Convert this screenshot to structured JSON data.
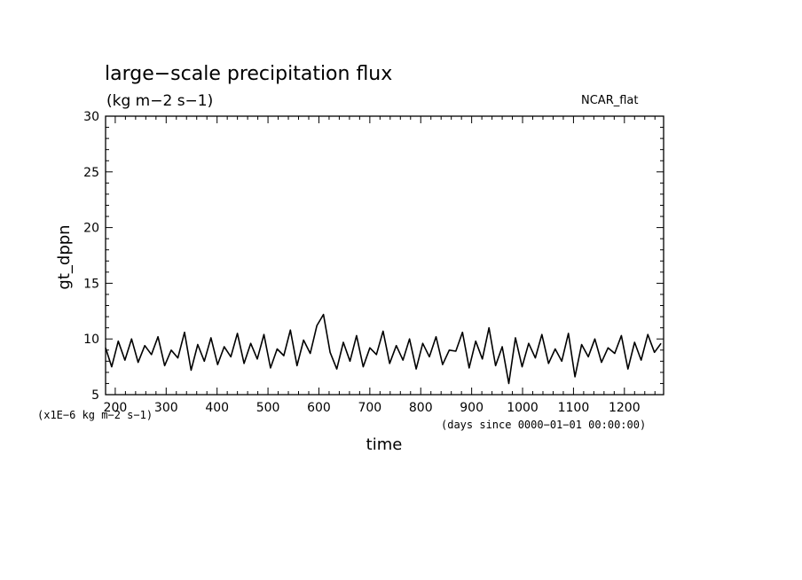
{
  "chart_data": {
    "type": "line",
    "title": "large−scale precipitation flux",
    "units": "(kg m−2 s−1)",
    "tag": "NCAR_flat",
    "ylabel": "gt_dppn",
    "xlabel": "time",
    "y_scale_note": "(x1E−6 kg m−2 s−1)",
    "x_unit_note": "(days since 0000−01−01 00:00:00)",
    "xlim": [
      181,
      1277
    ],
    "ylim": [
      5,
      30
    ],
    "x_ticks": [
      200,
      300,
      400,
      500,
      600,
      700,
      800,
      900,
      1000,
      1100,
      1200
    ],
    "y_ticks": [
      5,
      10,
      15,
      20,
      25,
      30
    ],
    "series": [
      {
        "x": [
          181,
          193,
          206,
          219,
          232,
          245,
          258,
          271,
          284,
          297,
          310,
          323,
          336,
          349,
          362,
          375,
          388,
          401,
          414,
          427,
          440,
          453,
          466,
          479,
          492,
          505,
          518,
          531,
          544,
          557,
          570,
          583,
          596,
          609,
          622,
          635,
          648,
          661,
          674,
          687,
          700,
          713,
          726,
          739,
          752,
          765,
          778,
          791,
          804,
          817,
          830,
          843,
          856,
          869,
          882,
          895,
          908,
          921,
          934,
          947,
          960,
          973,
          986,
          999,
          1012,
          1025,
          1038,
          1051,
          1064,
          1077,
          1090,
          1103,
          1116,
          1129,
          1142,
          1155,
          1168,
          1181,
          1194,
          1207,
          1220,
          1233,
          1246,
          1259,
          1272
        ],
        "y": [
          9.2,
          7.5,
          9.8,
          8.1,
          10.0,
          7.9,
          9.4,
          8.6,
          10.2,
          7.6,
          9.0,
          8.3,
          10.6,
          7.2,
          9.5,
          8.0,
          10.1,
          7.7,
          9.3,
          8.4,
          10.5,
          7.8,
          9.6,
          8.2,
          10.4,
          7.4,
          9.1,
          8.5,
          10.8,
          7.6,
          9.9,
          8.7,
          11.2,
          12.2,
          8.8,
          7.3,
          9.7,
          8.0,
          10.3,
          7.5,
          9.2,
          8.6,
          10.7,
          7.8,
          9.4,
          8.1,
          10.0,
          7.3,
          9.6,
          8.4,
          10.2,
          7.7,
          9.0,
          8.9,
          10.6,
          7.4,
          9.8,
          8.2,
          11.0,
          7.6,
          9.3,
          6.0,
          10.1,
          7.5,
          9.6,
          8.3,
          10.4,
          7.8,
          9.1,
          8.0,
          10.5,
          6.6,
          9.5,
          8.4,
          10.0,
          7.9,
          9.2,
          8.7,
          10.3,
          7.3,
          9.7,
          8.1,
          10.4,
          8.8,
          9.6
        ]
      }
    ],
    "grid": false,
    "line_color": "#000000"
  }
}
